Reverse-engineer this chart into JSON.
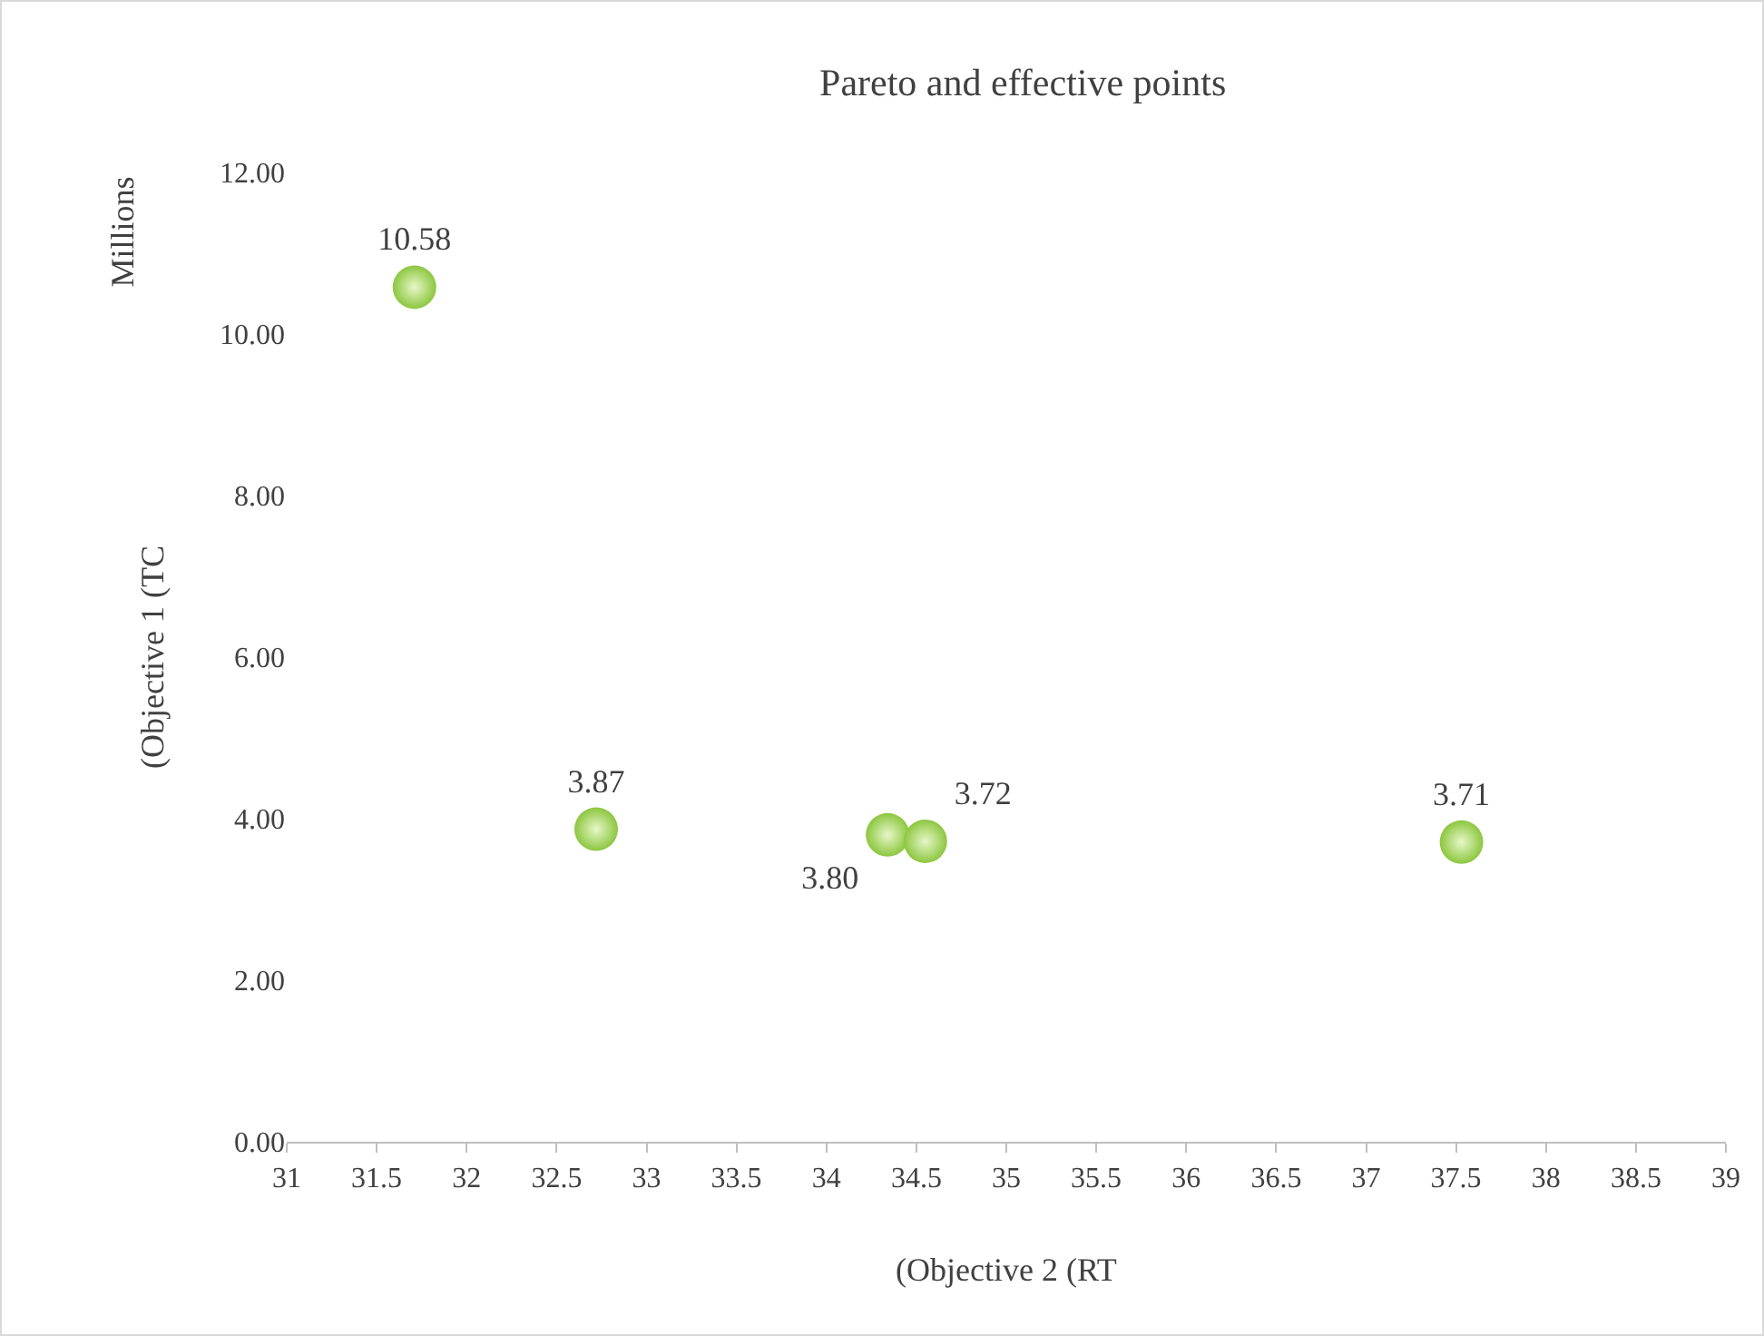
{
  "chart_data": {
    "type": "scatter",
    "title": "Pareto and effective points",
    "xlabel": "(Objective 2 (RT",
    "ylabel": "(Objective 1 (TC",
    "annotations": [
      "Millions"
    ],
    "x": [
      31.71,
      32.72,
      34.34,
      34.55,
      37.53
    ],
    "values": [
      10.58,
      3.87,
      3.8,
      3.72,
      3.71
    ],
    "value_labels": [
      "10.58",
      "3.87",
      "3.80",
      "3.72",
      "3.71"
    ],
    "color": "#8cc63f",
    "marker": "circle",
    "grid": false,
    "xlim": [
      31,
      39
    ],
    "xticks": [
      31,
      31.5,
      32,
      32.5,
      33,
      33.5,
      34,
      34.5,
      35,
      35.5,
      36,
      36.5,
      37,
      37.5,
      38,
      38.5,
      39
    ],
    "ylim": [
      0,
      12
    ],
    "yticks": [
      {
        "value": 0,
        "label": "0.00"
      },
      {
        "value": 2,
        "label": "2.00"
      },
      {
        "value": 4,
        "label": "4.00"
      },
      {
        "value": 6,
        "label": "6.00"
      },
      {
        "value": 8,
        "label": "8.00"
      },
      {
        "value": 10,
        "label": "10.00"
      },
      {
        "value": 12,
        "label": "12.00"
      }
    ]
  }
}
